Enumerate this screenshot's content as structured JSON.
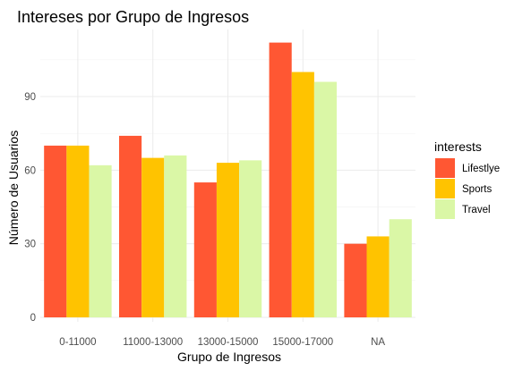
{
  "chart_data": {
    "type": "bar",
    "title": "Intereses por Grupo de Ingresos",
    "xlabel": "Grupo de Ingresos",
    "ylabel": "Número de Usuarios",
    "categories": [
      "0-11000",
      "11000-13000",
      "13000-15000",
      "15000-17000",
      "NA"
    ],
    "series": [
      {
        "name": "Lifestlye",
        "color": "#ff5733",
        "values": [
          70,
          74,
          55,
          112,
          30
        ]
      },
      {
        "name": "Sports",
        "color": "#ffc300",
        "values": [
          70,
          65,
          63,
          100,
          33
        ]
      },
      {
        "name": "Travel",
        "color": "#daf7a6",
        "values": [
          62,
          66,
          64,
          96,
          40
        ]
      }
    ],
    "yticks": [
      0,
      30,
      60,
      90
    ],
    "ylim": [
      0,
      120
    ],
    "grid": true,
    "legend": {
      "title": "interests",
      "position": "right"
    }
  }
}
